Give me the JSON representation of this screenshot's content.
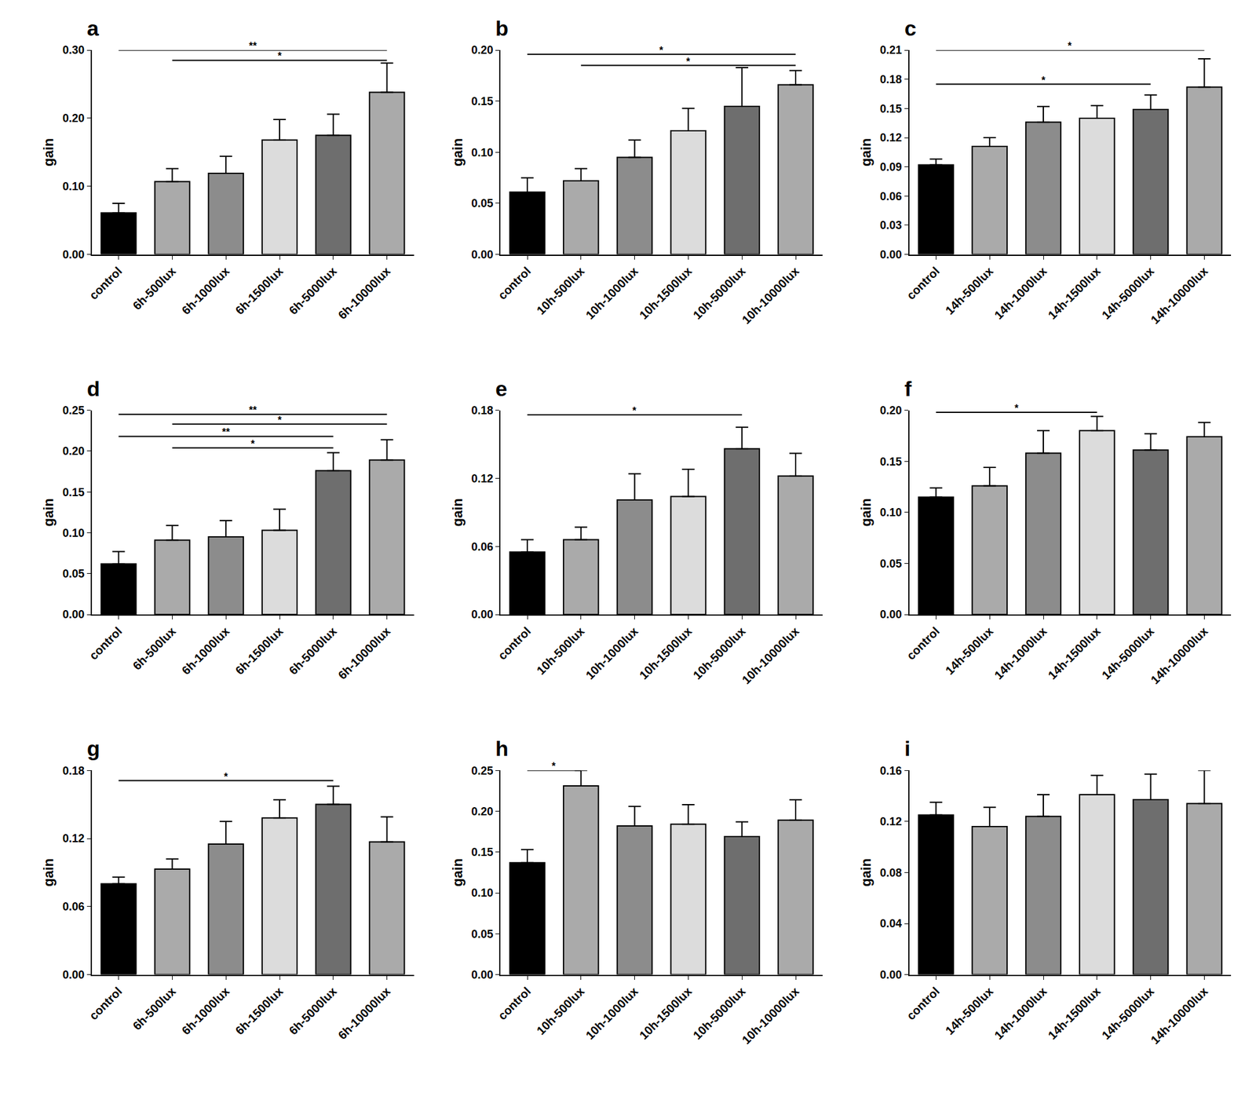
{
  "chart_data": [
    {
      "type": "bar",
      "title": "a",
      "y_label": "gain",
      "categories": [
        "control",
        "6h-500lux",
        "6h-1000lux",
        "6h-1500lux",
        "6h-5000lux",
        "6h-10000lux"
      ],
      "values": [
        0.061,
        0.107,
        0.119,
        0.168,
        0.175,
        0.238
      ],
      "errors": [
        0.014,
        0.019,
        0.025,
        0.03,
        0.031,
        0.043
      ],
      "colors": [
        "#000000",
        "#aaaaaa",
        "#8c8c8c",
        "#dcdcdc",
        "#6e6e6e",
        "#aaaaaa"
      ],
      "ylim": [
        0,
        0.3
      ],
      "yticks": [
        {
          "value": 0,
          "label": "0.00"
        },
        {
          "value": 0.1,
          "label": "0.10"
        },
        {
          "value": 0.2,
          "label": "0.20"
        },
        {
          "value": 0.3,
          "label": "0.30"
        }
      ],
      "annotations": [
        {
          "text": "**",
          "from": "control",
          "to": "6h-10000lux",
          "y": 0.3
        },
        {
          "text": "*",
          "from": "6h-500lux",
          "to": "6h-10000lux",
          "y": 0.285
        }
      ]
    },
    {
      "type": "bar",
      "title": "b",
      "y_label": "gain",
      "categories": [
        "control",
        "10h-500lux",
        "10h-1000lux",
        "10h-1500lux",
        "10h-5000lux",
        "10h-10000lux"
      ],
      "values": [
        0.061,
        0.072,
        0.095,
        0.121,
        0.145,
        0.166
      ],
      "errors": [
        0.014,
        0.012,
        0.017,
        0.022,
        0.038,
        0.014
      ],
      "colors": [
        "#000000",
        "#aaaaaa",
        "#8c8c8c",
        "#dcdcdc",
        "#6e6e6e",
        "#aaaaaa"
      ],
      "ylim": [
        0,
        0.2
      ],
      "yticks": [
        {
          "value": 0,
          "label": "0.00"
        },
        {
          "value": 0.05,
          "label": "0.05"
        },
        {
          "value": 0.1,
          "label": "0.10"
        },
        {
          "value": 0.15,
          "label": "0.15"
        },
        {
          "value": 0.2,
          "label": "0.20"
        }
      ],
      "annotations": [
        {
          "text": "*",
          "from": "control",
          "to": "10h-10000lux",
          "y": 0.196
        },
        {
          "text": "*",
          "from": "10h-500lux",
          "to": "10h-10000lux",
          "y": 0.185
        }
      ]
    },
    {
      "type": "bar",
      "title": "c",
      "y_label": "gain",
      "categories": [
        "control",
        "14h-500lux",
        "14h-1000lux",
        "14h-1500lux",
        "14h-5000lux",
        "14h-10000lux"
      ],
      "values": [
        0.092,
        0.111,
        0.136,
        0.14,
        0.149,
        0.172
      ],
      "errors": [
        0.006,
        0.009,
        0.016,
        0.013,
        0.015,
        0.029
      ],
      "colors": [
        "#000000",
        "#aaaaaa",
        "#8c8c8c",
        "#dcdcdc",
        "#6e6e6e",
        "#aaaaaa"
      ],
      "ylim": [
        0,
        0.21
      ],
      "yticks": [
        {
          "value": 0,
          "label": "0.00"
        },
        {
          "value": 0.03,
          "label": "0.03"
        },
        {
          "value": 0.06,
          "label": "0.06"
        },
        {
          "value": 0.09,
          "label": "0.09"
        },
        {
          "value": 0.12,
          "label": "0.12"
        },
        {
          "value": 0.15,
          "label": "0.15"
        },
        {
          "value": 0.18,
          "label": "0.18"
        },
        {
          "value": 0.21,
          "label": "0.21"
        }
      ],
      "annotations": [
        {
          "text": "*",
          "from": "control",
          "to": "14h-10000lux",
          "y": 0.21
        },
        {
          "text": "*",
          "from": "control",
          "to": "14h-5000lux",
          "y": 0.175
        }
      ]
    },
    {
      "type": "bar",
      "title": "d",
      "y_label": "gain",
      "categories": [
        "control",
        "6h-500lux",
        "6h-1000lux",
        "6h-1500lux",
        "6h-5000lux",
        "6h-10000lux"
      ],
      "values": [
        0.062,
        0.091,
        0.095,
        0.103,
        0.176,
        0.189
      ],
      "errors": [
        0.015,
        0.018,
        0.02,
        0.026,
        0.022,
        0.025
      ],
      "colors": [
        "#000000",
        "#aaaaaa",
        "#8c8c8c",
        "#dcdcdc",
        "#6e6e6e",
        "#aaaaaa"
      ],
      "ylim": [
        0,
        0.25
      ],
      "yticks": [
        {
          "value": 0,
          "label": "0.00"
        },
        {
          "value": 0.05,
          "label": "0.05"
        },
        {
          "value": 0.1,
          "label": "0.10"
        },
        {
          "value": 0.15,
          "label": "0.15"
        },
        {
          "value": 0.2,
          "label": "0.20"
        },
        {
          "value": 0.25,
          "label": "0.25"
        }
      ],
      "annotations": [
        {
          "text": "**",
          "from": "control",
          "to": "6h-10000lux",
          "y": 0.245
        },
        {
          "text": "*",
          "from": "6h-500lux",
          "to": "6h-10000lux",
          "y": 0.233
        },
        {
          "text": "**",
          "from": "control",
          "to": "6h-5000lux",
          "y": 0.218
        },
        {
          "text": "*",
          "from": "6h-500lux",
          "to": "6h-5000lux",
          "y": 0.204
        }
      ]
    },
    {
      "type": "bar",
      "title": "e",
      "y_label": "gain",
      "categories": [
        "control",
        "10h-500lux",
        "10h-1000lux",
        "10h-1500lux",
        "10h-5000lux",
        "10h-10000lux"
      ],
      "values": [
        0.055,
        0.066,
        0.101,
        0.104,
        0.146,
        0.122
      ],
      "errors": [
        0.011,
        0.011,
        0.023,
        0.024,
        0.019,
        0.02
      ],
      "colors": [
        "#000000",
        "#aaaaaa",
        "#8c8c8c",
        "#dcdcdc",
        "#6e6e6e",
        "#aaaaaa"
      ],
      "ylim": [
        0,
        0.18
      ],
      "yticks": [
        {
          "value": 0,
          "label": "0.00"
        },
        {
          "value": 0.06,
          "label": "0.06"
        },
        {
          "value": 0.12,
          "label": "0.12"
        },
        {
          "value": 0.18,
          "label": "0.18"
        }
      ],
      "annotations": [
        {
          "text": "*",
          "from": "control",
          "to": "10h-5000lux",
          "y": 0.176
        }
      ]
    },
    {
      "type": "bar",
      "title": "f",
      "y_label": "gain",
      "categories": [
        "control",
        "14h-500lux",
        "14h-1000lux",
        "14h-1500lux",
        "14h-5000lux",
        "14h-10000lux"
      ],
      "values": [
        0.115,
        0.126,
        0.158,
        0.18,
        0.161,
        0.174
      ],
      "errors": [
        0.009,
        0.018,
        0.022,
        0.014,
        0.016,
        0.014
      ],
      "colors": [
        "#000000",
        "#aaaaaa",
        "#8c8c8c",
        "#dcdcdc",
        "#6e6e6e",
        "#aaaaaa"
      ],
      "ylim": [
        0,
        0.2
      ],
      "yticks": [
        {
          "value": 0,
          "label": "0.00"
        },
        {
          "value": 0.05,
          "label": "0.05"
        },
        {
          "value": 0.1,
          "label": "0.10"
        },
        {
          "value": 0.15,
          "label": "0.15"
        },
        {
          "value": 0.2,
          "label": "0.20"
        }
      ],
      "annotations": [
        {
          "text": "*",
          "from": "control",
          "to": "14h-1500lux",
          "y": 0.198
        }
      ]
    },
    {
      "type": "bar",
      "title": "g",
      "y_label": "gain",
      "categories": [
        "control",
        "6h-500lux",
        "6h-1000lux",
        "6h-1500lux",
        "6h-5000lux",
        "6h-10000lux"
      ],
      "values": [
        0.08,
        0.093,
        0.115,
        0.138,
        0.15,
        0.117
      ],
      "errors": [
        0.006,
        0.009,
        0.02,
        0.016,
        0.016,
        0.022
      ],
      "colors": [
        "#000000",
        "#aaaaaa",
        "#8c8c8c",
        "#dcdcdc",
        "#6e6e6e",
        "#aaaaaa"
      ],
      "ylim": [
        0,
        0.18
      ],
      "yticks": [
        {
          "value": 0,
          "label": "0.00"
        },
        {
          "value": 0.06,
          "label": "0.06"
        },
        {
          "value": 0.12,
          "label": "0.12"
        },
        {
          "value": 0.18,
          "label": "0.18"
        }
      ],
      "annotations": [
        {
          "text": "*",
          "from": "control",
          "to": "6h-5000lux",
          "y": 0.171
        }
      ]
    },
    {
      "type": "bar",
      "title": "h",
      "y_label": "gain",
      "categories": [
        "control",
        "10h-500lux",
        "10h-1000lux",
        "10h-1500lux",
        "10h-5000lux",
        "10h-10000lux"
      ],
      "values": [
        0.137,
        0.231,
        0.182,
        0.184,
        0.169,
        0.189
      ],
      "errors": [
        0.016,
        0.019,
        0.024,
        0.024,
        0.018,
        0.025
      ],
      "colors": [
        "#000000",
        "#aaaaaa",
        "#8c8c8c",
        "#dcdcdc",
        "#6e6e6e",
        "#aaaaaa"
      ],
      "ylim": [
        0,
        0.25
      ],
      "yticks": [
        {
          "value": 0,
          "label": "0.00"
        },
        {
          "value": 0.05,
          "label": "0.05"
        },
        {
          "value": 0.1,
          "label": "0.10"
        },
        {
          "value": 0.15,
          "label": "0.15"
        },
        {
          "value": 0.2,
          "label": "0.20"
        },
        {
          "value": 0.25,
          "label": "0.25"
        }
      ],
      "annotations": [
        {
          "text": "*",
          "from": "control",
          "to": "10h-500lux",
          "y": 0.25
        }
      ]
    },
    {
      "type": "bar",
      "title": "i",
      "y_label": "gain",
      "categories": [
        "control",
        "14h-500lux",
        "14h-1000lux",
        "14h-1500lux",
        "14h-5000lux",
        "14h-10000lux"
      ],
      "values": [
        0.125,
        0.116,
        0.124,
        0.141,
        0.137,
        0.134
      ],
      "errors": [
        0.01,
        0.015,
        0.017,
        0.015,
        0.02,
        0.026
      ],
      "colors": [
        "#000000",
        "#aaaaaa",
        "#8c8c8c",
        "#dcdcdc",
        "#6e6e6e",
        "#aaaaaa"
      ],
      "ylim": [
        0,
        0.16
      ],
      "yticks": [
        {
          "value": 0,
          "label": "0.00"
        },
        {
          "value": 0.04,
          "label": "0.04"
        },
        {
          "value": 0.08,
          "label": "0.08"
        },
        {
          "value": 0.12,
          "label": "0.12"
        },
        {
          "value": 0.16,
          "label": "0.16"
        }
      ],
      "annotations": []
    }
  ]
}
